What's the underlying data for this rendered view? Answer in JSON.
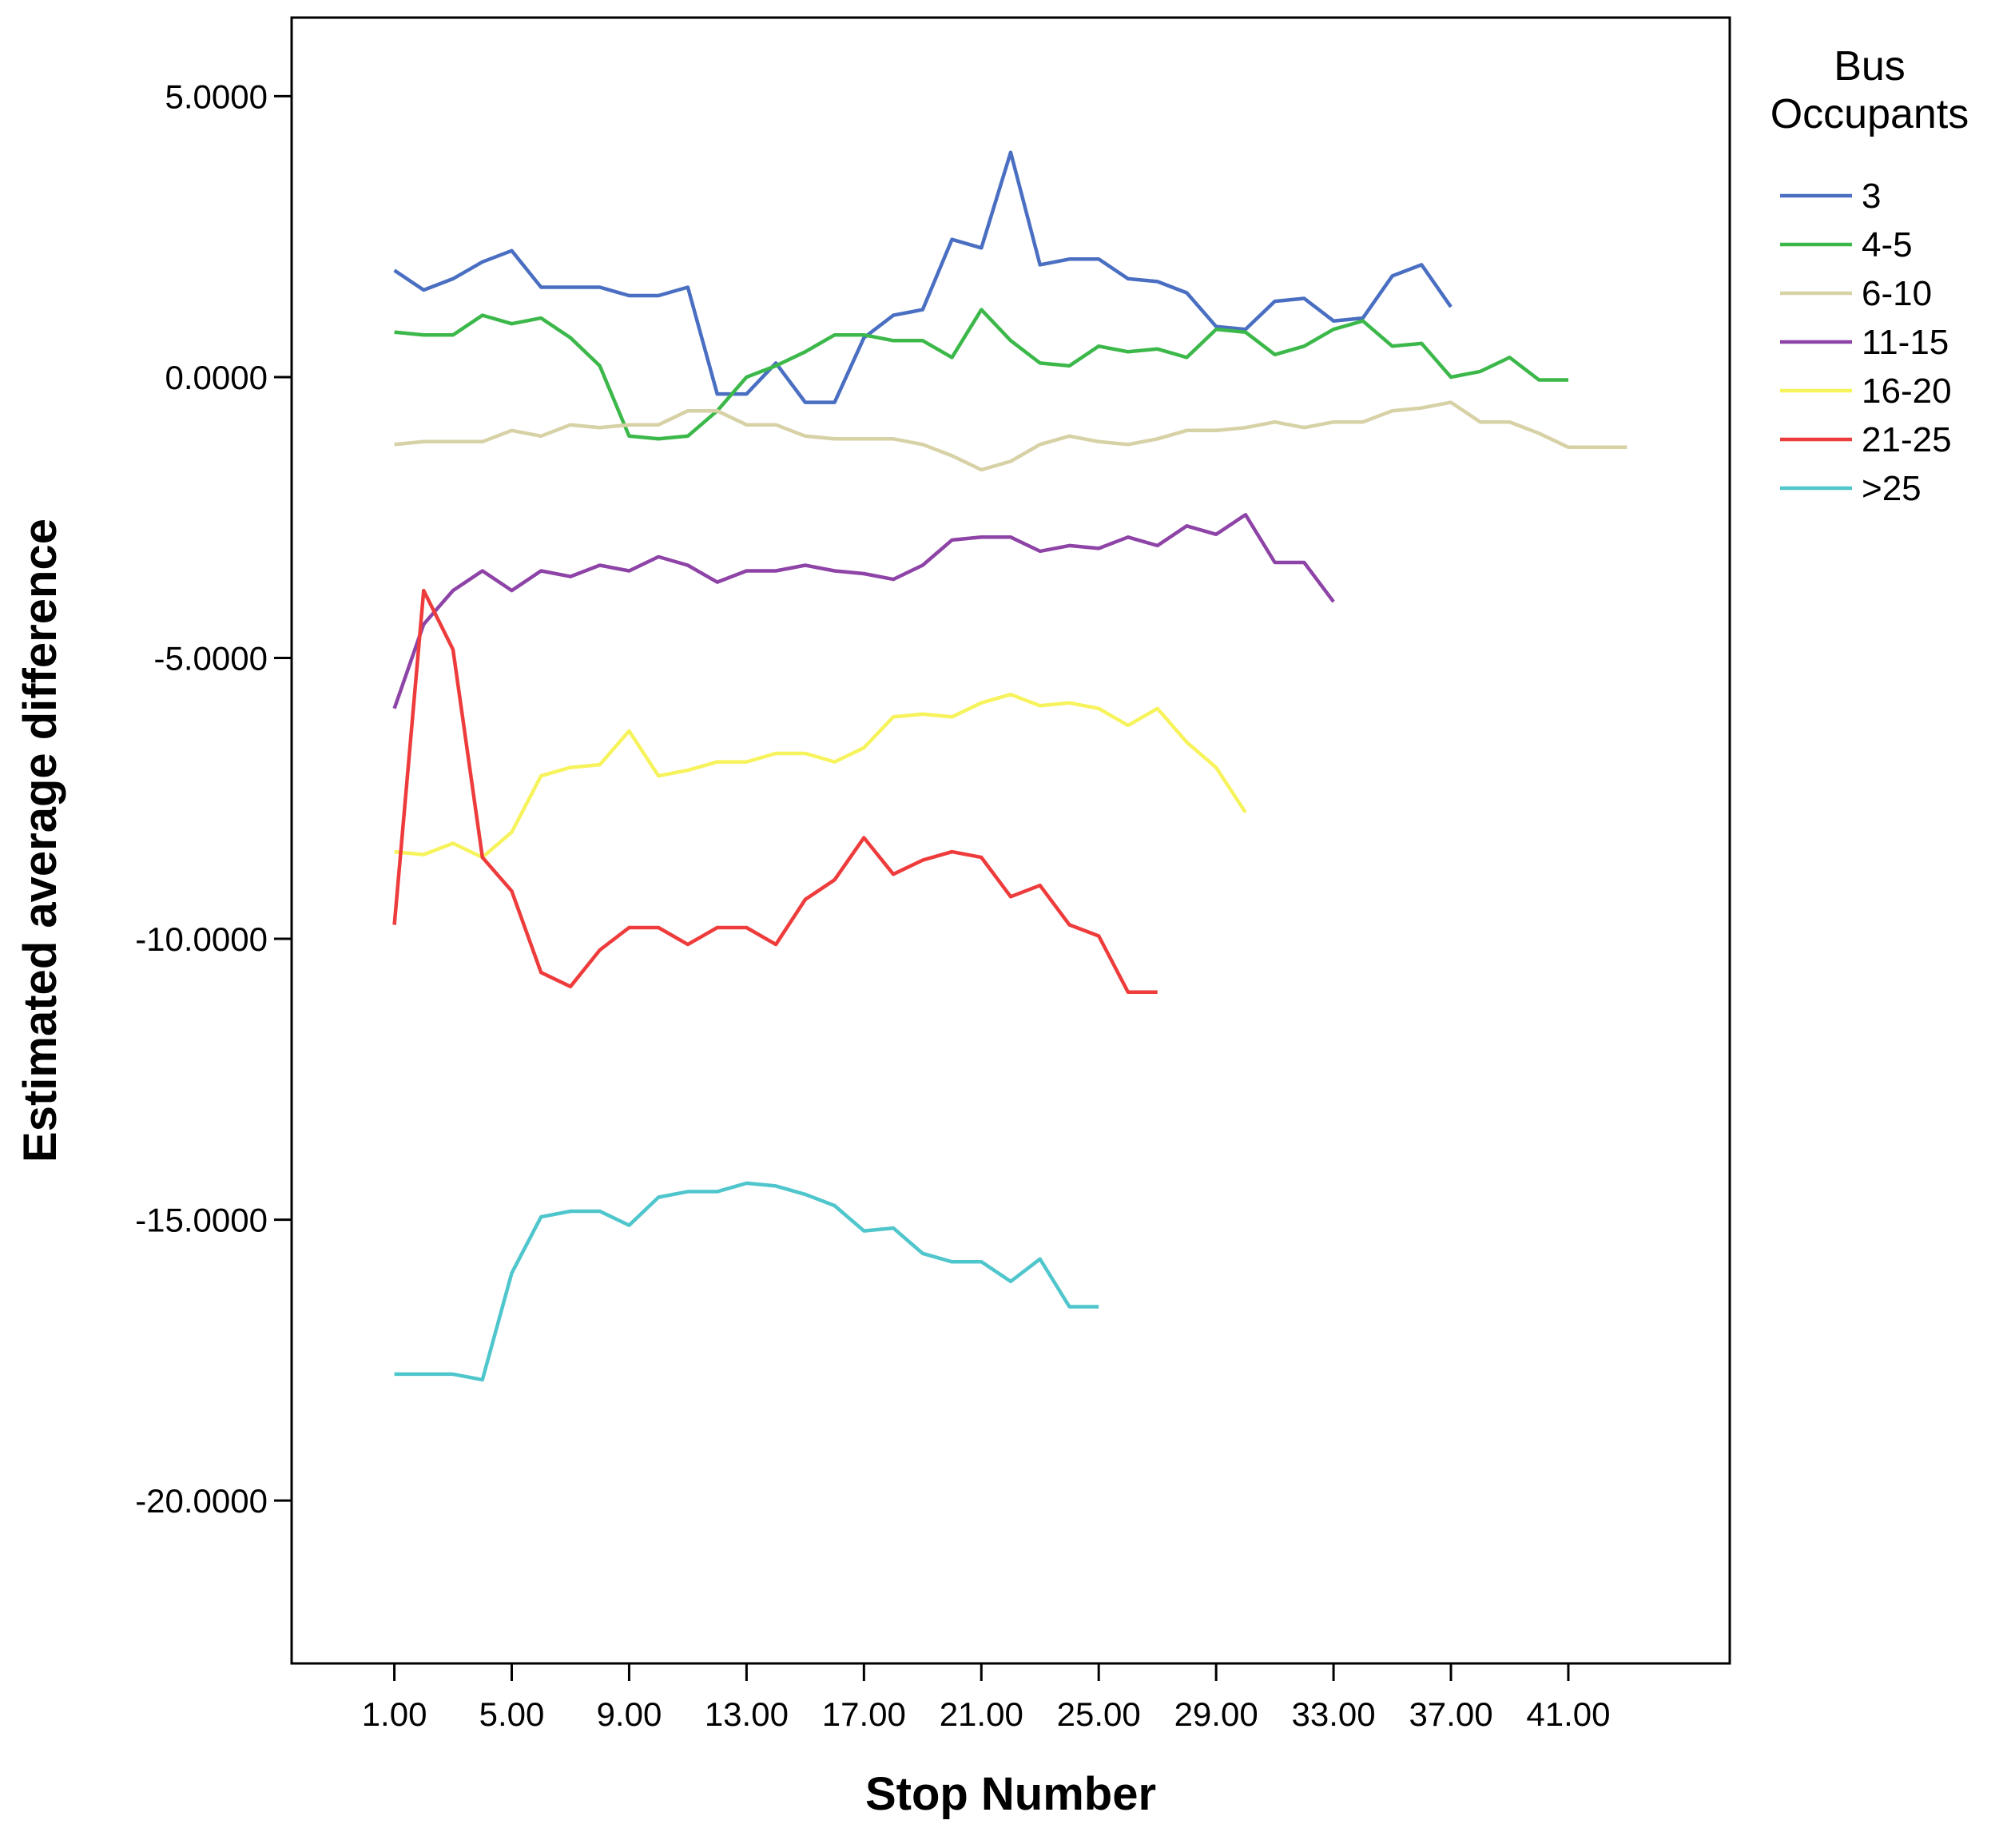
{
  "chart_data": {
    "type": "line",
    "title": "",
    "xlabel": "Stop Number",
    "ylabel": "Estimated average difference",
    "xlim": [
      -2.5,
      46.5
    ],
    "ylim": [
      -22.9,
      6.4
    ],
    "x_ticks": [
      1,
      5,
      9,
      13,
      17,
      21,
      25,
      29,
      33,
      37,
      41
    ],
    "x_tick_labels": [
      "1.00",
      "5.00",
      "9.00",
      "13.00",
      "17.00",
      "21.00",
      "25.00",
      "29.00",
      "33.00",
      "37.00",
      "41.00"
    ],
    "y_ticks": [
      5,
      0,
      -5,
      -10,
      -15,
      -20
    ],
    "y_tick_labels": [
      "5.0000",
      "0.0000",
      "-5.0000",
      "-10.0000",
      "-15.0000",
      "-20.0000"
    ],
    "grid": false,
    "legend": {
      "title": "Bus\nOccupants",
      "placement": "right"
    },
    "series": [
      {
        "name": "3",
        "color": "#4a6fc2",
        "x_start": 1,
        "values": [
          1.9,
          1.55,
          1.75,
          2.05,
          2.25,
          1.6,
          1.6,
          1.6,
          1.45,
          1.45,
          1.6,
          -0.3,
          -0.3,
          0.25,
          -0.45,
          -0.45,
          0.7,
          1.1,
          1.2,
          2.45,
          2.3,
          4.0,
          2.0,
          2.1,
          2.1,
          1.75,
          1.7,
          1.5,
          0.9,
          0.85,
          1.35,
          1.4,
          1.0,
          1.05,
          1.8,
          2.0,
          1.25
        ]
      },
      {
        "name": "4-5",
        "color": "#3cb84a",
        "x_start": 1,
        "values": [
          0.8,
          0.75,
          0.75,
          1.1,
          0.95,
          1.05,
          0.7,
          0.2,
          -1.05,
          -1.1,
          -1.05,
          -0.6,
          0.0,
          0.2,
          0.45,
          0.75,
          0.75,
          0.65,
          0.65,
          0.35,
          1.2,
          0.65,
          0.25,
          0.2,
          0.55,
          0.45,
          0.5,
          0.35,
          0.85,
          0.8,
          0.4,
          0.55,
          0.85,
          1.0,
          0.55,
          0.6,
          0.0,
          0.1,
          0.35,
          -0.05,
          -0.05
        ]
      },
      {
        "name": "6-10",
        "color": "#d7d1a6",
        "x_start": 1,
        "values": [
          -1.2,
          -1.15,
          -1.15,
          -1.15,
          -0.95,
          -1.05,
          -0.85,
          -0.9,
          -0.85,
          -0.85,
          -0.6,
          -0.6,
          -0.85,
          -0.85,
          -1.05,
          -1.1,
          -1.1,
          -1.1,
          -1.2,
          -1.4,
          -1.65,
          -1.5,
          -1.2,
          -1.05,
          -1.15,
          -1.2,
          -1.1,
          -0.95,
          -0.95,
          -0.9,
          -0.8,
          -0.9,
          -0.8,
          -0.8,
          -0.6,
          -0.55,
          -0.45,
          -0.8,
          -0.8,
          -1.0,
          -1.25,
          -1.25,
          -1.25
        ]
      },
      {
        "name": "11-15",
        "color": "#8e44a7",
        "x_start": 1,
        "values": [
          -5.9,
          -4.4,
          -3.8,
          -3.45,
          -3.8,
          -3.45,
          -3.55,
          -3.35,
          -3.45,
          -3.2,
          -3.35,
          -3.65,
          -3.45,
          -3.45,
          -3.35,
          -3.45,
          -3.5,
          -3.6,
          -3.35,
          -2.9,
          -2.85,
          -2.85,
          -3.1,
          -3.0,
          -3.05,
          -2.85,
          -3.0,
          -2.65,
          -2.8,
          -2.45,
          -3.3,
          -3.3,
          -4.0
        ]
      },
      {
        "name": "16-20",
        "color": "#f6f35c",
        "x_start": 1,
        "values": [
          -8.45,
          -8.5,
          -8.3,
          -8.55,
          -8.1,
          -7.1,
          -6.95,
          -6.9,
          -6.3,
          -7.1,
          -7.0,
          -6.85,
          -6.85,
          -6.7,
          -6.7,
          -6.85,
          -6.6,
          -6.05,
          -6.0,
          -6.05,
          -5.8,
          -5.65,
          -5.85,
          -5.8,
          -5.9,
          -6.2,
          -5.9,
          -6.5,
          -6.95,
          -7.75
        ]
      },
      {
        "name": "21-25",
        "color": "#ee3b3b",
        "x_start": 1,
        "values": [
          -9.75,
          -3.8,
          -4.85,
          -8.55,
          -9.15,
          -10.6,
          -10.85,
          -10.2,
          -9.8,
          -9.8,
          -10.1,
          -9.8,
          -9.8,
          -10.1,
          -9.3,
          -8.95,
          -8.2,
          -8.85,
          -8.6,
          -8.45,
          -8.55,
          -9.25,
          -9.05,
          -9.75,
          -9.95,
          -10.95,
          -10.95
        ]
      },
      {
        "name": ">25",
        "color": "#4fc6cc",
        "x_start": 1,
        "values": [
          -17.75,
          -17.75,
          -17.75,
          -17.85,
          -15.95,
          -14.95,
          -14.85,
          -14.85,
          -15.1,
          -14.6,
          -14.5,
          -14.5,
          -14.35,
          -14.4,
          -14.55,
          -14.75,
          -15.2,
          -15.15,
          -15.6,
          -15.75,
          -15.75,
          -16.1,
          -15.7,
          -16.55,
          -16.55
        ]
      }
    ]
  }
}
